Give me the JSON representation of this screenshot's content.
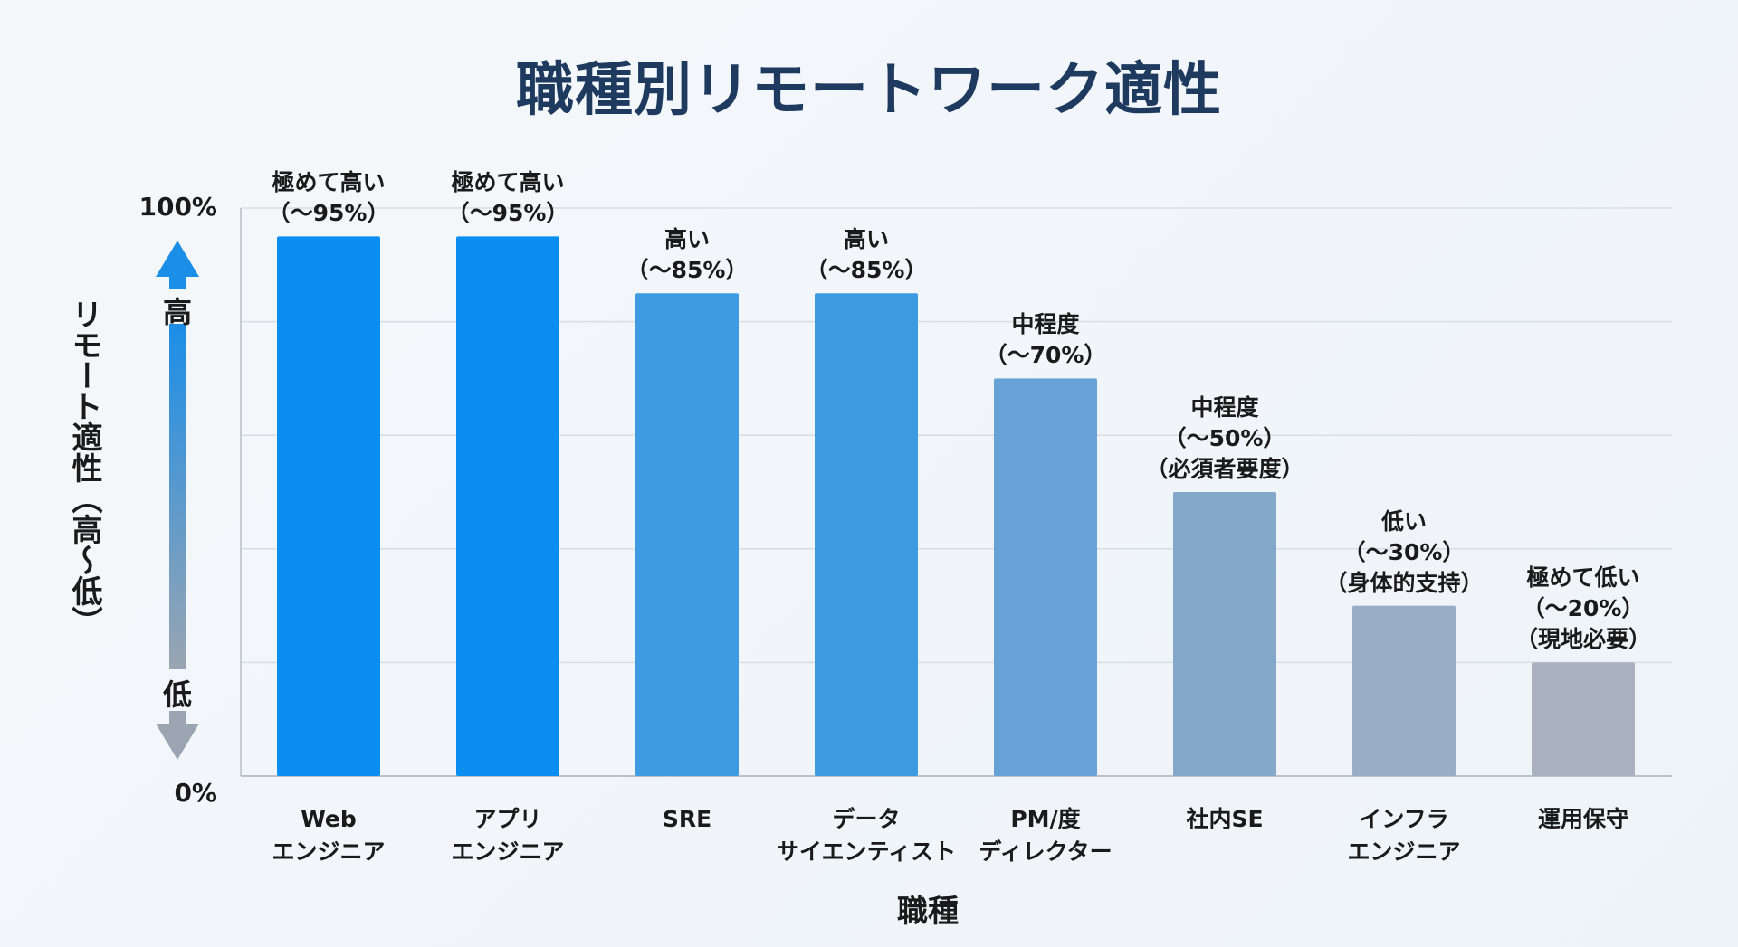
{
  "title": "職種別リモートワーク適性",
  "chart_data": {
    "type": "bar",
    "title": "職種別リモートワーク適性",
    "xlabel": "職種",
    "ylabel": "リモート適性（高〜低）",
    "ylim": [
      0,
      100
    ],
    "yticks": [
      "100%",
      "0%"
    ],
    "grid": true,
    "y_arrow": {
      "high": "高",
      "low": "低"
    },
    "categories": [
      [
        "Web",
        "エンジニア"
      ],
      [
        "アプリ",
        "エンジニア"
      ],
      [
        "SRE"
      ],
      [
        "データ",
        "サイエンティスト"
      ],
      [
        "PM/度",
        "ディレクター"
      ],
      [
        "社内SE"
      ],
      [
        "インフラ",
        "エンジニア"
      ],
      [
        "運用保守"
      ]
    ],
    "values": [
      95,
      95,
      85,
      85,
      70,
      50,
      30,
      20
    ],
    "data_labels": [
      [
        "極めて高い",
        "（〜95%）"
      ],
      [
        "極めて高い",
        "（〜95%）"
      ],
      [
        "高い",
        "（〜85%）"
      ],
      [
        "高い",
        "（〜85%）"
      ],
      [
        "中程度",
        "（〜70%）"
      ],
      [
        "中程度",
        "（〜50%）",
        "（必須者要度）"
      ],
      [
        "低い",
        "（〜30%）",
        "（身体的支持）"
      ],
      [
        "極めて低い",
        "（〜20%）",
        "（現地必要）"
      ]
    ],
    "colors": [
      "#0a8ff0",
      "#0a8ff0",
      "#3d9be2",
      "#3d9be2",
      "#66a2d6",
      "#84a8ca",
      "#99adc6",
      "#a9b1c1"
    ]
  }
}
